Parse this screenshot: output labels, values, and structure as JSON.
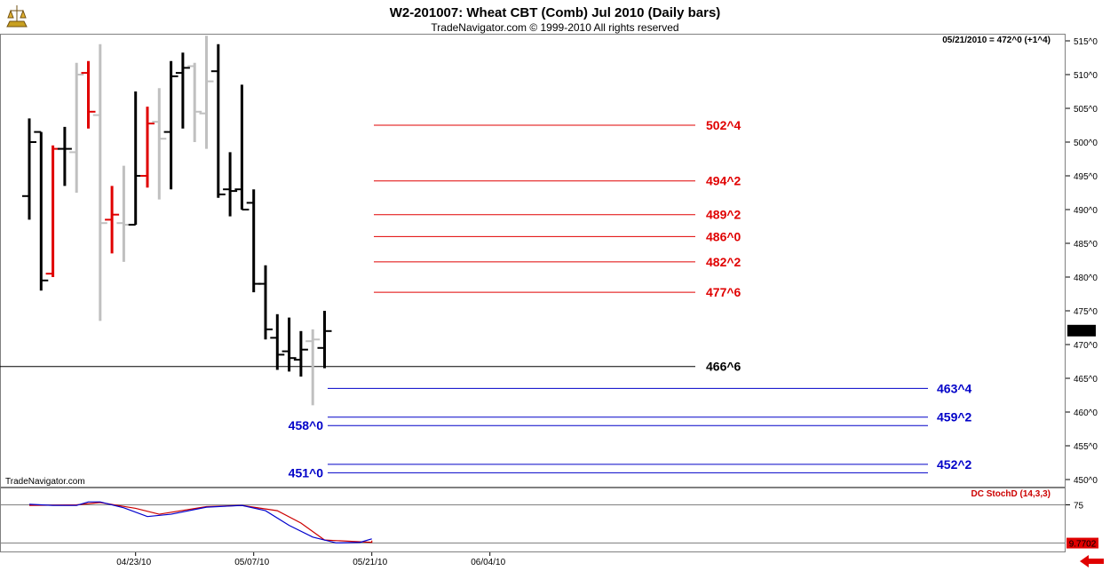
{
  "header": {
    "title": "W2-201007:  Wheat CBT (Comb) Jul 2010  (Daily bars)",
    "copyright": "TradeNavigator.com © 1999-2010 All rights reserved",
    "last_info": "05/21/2010 = 472^0 (+1^4)",
    "watermark": "TradeNavigator.com",
    "last_price_tag": "472^0"
  },
  "chart_data": [
    {
      "type": "bar",
      "title": "W2-201007:  Wheat CBT (Comb) Jul 2010  (Daily bars)",
      "ylim": [
        447.5,
        517
      ],
      "y_ticks": [
        "515^0",
        "510^0",
        "505^0",
        "500^0",
        "495^0",
        "490^0",
        "485^0",
        "480^0",
        "475^0",
        "470^0",
        "465^0",
        "460^0",
        "455^0",
        "450^0"
      ],
      "y_tick_values": [
        515,
        510,
        505,
        500,
        495,
        490,
        485,
        480,
        475,
        470,
        465,
        460,
        455,
        450
      ],
      "x_ticks": [
        "04/23/10",
        "05/07/10",
        "05/21/10",
        "06/04/10"
      ],
      "x_tick_dates": [
        "2010-04-23",
        "2010-05-07",
        "2010-05-21",
        "2010-06-04"
      ],
      "date_range": [
        "2010-04-12",
        "2010-06-11"
      ],
      "colors": {
        "black": "#000000",
        "red": "#e00000",
        "gray": "#c0c0c0"
      },
      "bars": [
        {
          "date": "2010-04-12",
          "open": 492.0,
          "high": 503.5,
          "low": 488.5,
          "close": 500.0,
          "color": "black"
        },
        {
          "date": "2010-04-13",
          "open": 501.5,
          "high": 501.5,
          "low": 478.0,
          "close": 479.5,
          "color": "black"
        },
        {
          "date": "2010-04-14",
          "open": 480.5,
          "high": 499.5,
          "low": 480.0,
          "close": 499.0,
          "color": "red"
        },
        {
          "date": "2010-04-15",
          "open": 499.0,
          "high": 502.25,
          "low": 493.5,
          "close": 499.0,
          "color": "black"
        },
        {
          "date": "2010-04-16",
          "open": 498.5,
          "high": 511.75,
          "low": 492.5,
          "close": 510.0,
          "color": "gray"
        },
        {
          "date": "2010-04-19",
          "open": 510.25,
          "high": 512.0,
          "low": 502.0,
          "close": 504.5,
          "color": "red"
        },
        {
          "date": "2010-04-20",
          "open": 504.0,
          "high": 514.5,
          "low": 473.5,
          "close": 488.0,
          "color": "gray"
        },
        {
          "date": "2010-04-21",
          "open": 488.5,
          "high": 493.5,
          "low": 483.5,
          "close": 489.25,
          "color": "red"
        },
        {
          "date": "2010-04-22",
          "open": 488.0,
          "high": 496.5,
          "low": 482.25,
          "close": 487.75,
          "color": "gray"
        },
        {
          "date": "2010-04-23",
          "open": 487.75,
          "high": 507.5,
          "low": 487.75,
          "close": 495.0,
          "color": "black"
        },
        {
          "date": "2010-04-26",
          "open": 495.0,
          "high": 505.25,
          "low": 493.25,
          "close": 502.75,
          "color": "red"
        },
        {
          "date": "2010-04-27",
          "open": 503.0,
          "high": 508.0,
          "low": 491.5,
          "close": 500.5,
          "color": "gray"
        },
        {
          "date": "2010-04-28",
          "open": 501.5,
          "high": 512.0,
          "low": 493.0,
          "close": 509.75,
          "color": "black"
        },
        {
          "date": "2010-04-29",
          "open": 510.25,
          "high": 513.25,
          "low": 502.0,
          "close": 511.0,
          "color": "black"
        },
        {
          "date": "2010-04-30",
          "open": 511.25,
          "high": 511.75,
          "low": 500.0,
          "close": 504.5,
          "color": "gray"
        },
        {
          "date": "2010-05-03",
          "open": 504.25,
          "high": 515.75,
          "low": 499.0,
          "close": 509.0,
          "color": "gray"
        },
        {
          "date": "2010-05-04",
          "open": 510.5,
          "high": 514.5,
          "low": 491.75,
          "close": 492.25,
          "color": "black"
        },
        {
          "date": "2010-05-05",
          "open": 493.0,
          "high": 498.5,
          "low": 489.0,
          "close": 492.75,
          "color": "black"
        },
        {
          "date": "2010-05-06",
          "open": 493.0,
          "high": 508.5,
          "low": 490.0,
          "close": 490.0,
          "color": "black"
        },
        {
          "date": "2010-05-07",
          "open": 491.0,
          "high": 493.0,
          "low": 477.75,
          "close": 479.0,
          "color": "black"
        },
        {
          "date": "2010-05-10",
          "open": 479.0,
          "high": 481.75,
          "low": 470.75,
          "close": 472.25,
          "color": "black"
        },
        {
          "date": "2010-05-11",
          "open": 471.0,
          "high": 474.5,
          "low": 466.25,
          "close": 468.5,
          "color": "black"
        },
        {
          "date": "2010-05-12",
          "open": 469.0,
          "high": 474.0,
          "low": 466.0,
          "close": 468.0,
          "color": "black"
        },
        {
          "date": "2010-05-13",
          "open": 467.75,
          "high": 472.0,
          "low": 465.25,
          "close": 469.25,
          "color": "black"
        },
        {
          "date": "2010-05-14",
          "open": 470.5,
          "high": 472.25,
          "low": 461.0,
          "close": 470.75,
          "color": "gray"
        },
        {
          "date": "2010-05-17",
          "open": 469.5,
          "high": 475.0,
          "low": 466.5,
          "close": 472.0,
          "color": "black"
        }
      ],
      "resistance_levels": [
        "502^4",
        "494^2",
        "489^2",
        "486^0",
        "482^2",
        "477^6"
      ],
      "resistance_values": [
        502.5,
        494.25,
        489.25,
        486.0,
        482.25,
        477.75
      ],
      "pivot_level": "466^6",
      "pivot_value": 466.75,
      "support_right_labels": [
        "463^4",
        "459^2",
        "452^2"
      ],
      "support_right_values": [
        463.5,
        459.25,
        452.25
      ],
      "support_left_labels": [
        "458^0",
        "451^0"
      ],
      "support_left_values": [
        458.0,
        451.0
      ],
      "level_colors": {
        "resistance": "#e00000",
        "pivot": "#000000",
        "support": "#0000c8"
      }
    },
    {
      "type": "line",
      "title": "DC StochD (14,3,3)",
      "ylim": [
        0,
        100
      ],
      "y_ticks": [
        "75"
      ],
      "value_tag": "9.7702",
      "reference_lines": [
        75,
        9.7702
      ],
      "colors": {
        "k": "#0000cc",
        "d": "#cc0000",
        "tag_bg": "#e00000"
      },
      "k_values": [
        {
          "date": "2010-04-12",
          "value": 76
        },
        {
          "date": "2010-04-14",
          "value": 74
        },
        {
          "date": "2010-04-16",
          "value": 74
        },
        {
          "date": "2010-04-19",
          "value": 80
        },
        {
          "date": "2010-04-20",
          "value": 80
        },
        {
          "date": "2010-04-22",
          "value": 70
        },
        {
          "date": "2010-04-26",
          "value": 55
        },
        {
          "date": "2010-04-28",
          "value": 59
        },
        {
          "date": "2010-05-03",
          "value": 71
        },
        {
          "date": "2010-05-06",
          "value": 74
        },
        {
          "date": "2010-05-10",
          "value": 65
        },
        {
          "date": "2010-05-12",
          "value": 40
        },
        {
          "date": "2010-05-14",
          "value": 20
        },
        {
          "date": "2010-05-18",
          "value": 10
        },
        {
          "date": "2010-05-20",
          "value": 11
        },
        {
          "date": "2010-05-23",
          "value": 17
        }
      ],
      "d_values": [
        {
          "date": "2010-04-12",
          "value": 74
        },
        {
          "date": "2010-04-16",
          "value": 75
        },
        {
          "date": "2010-04-20",
          "value": 79
        },
        {
          "date": "2010-04-23",
          "value": 69
        },
        {
          "date": "2010-04-27",
          "value": 59
        },
        {
          "date": "2010-05-03",
          "value": 72
        },
        {
          "date": "2010-05-06",
          "value": 74
        },
        {
          "date": "2010-05-11",
          "value": 65
        },
        {
          "date": "2010-05-13",
          "value": 44
        },
        {
          "date": "2010-05-17",
          "value": 15
        },
        {
          "date": "2010-05-21",
          "value": 11
        },
        {
          "date": "2010-05-23",
          "value": 14
        }
      ]
    }
  ],
  "nav": {
    "scroll_arrow": "left-arrow-icon"
  }
}
